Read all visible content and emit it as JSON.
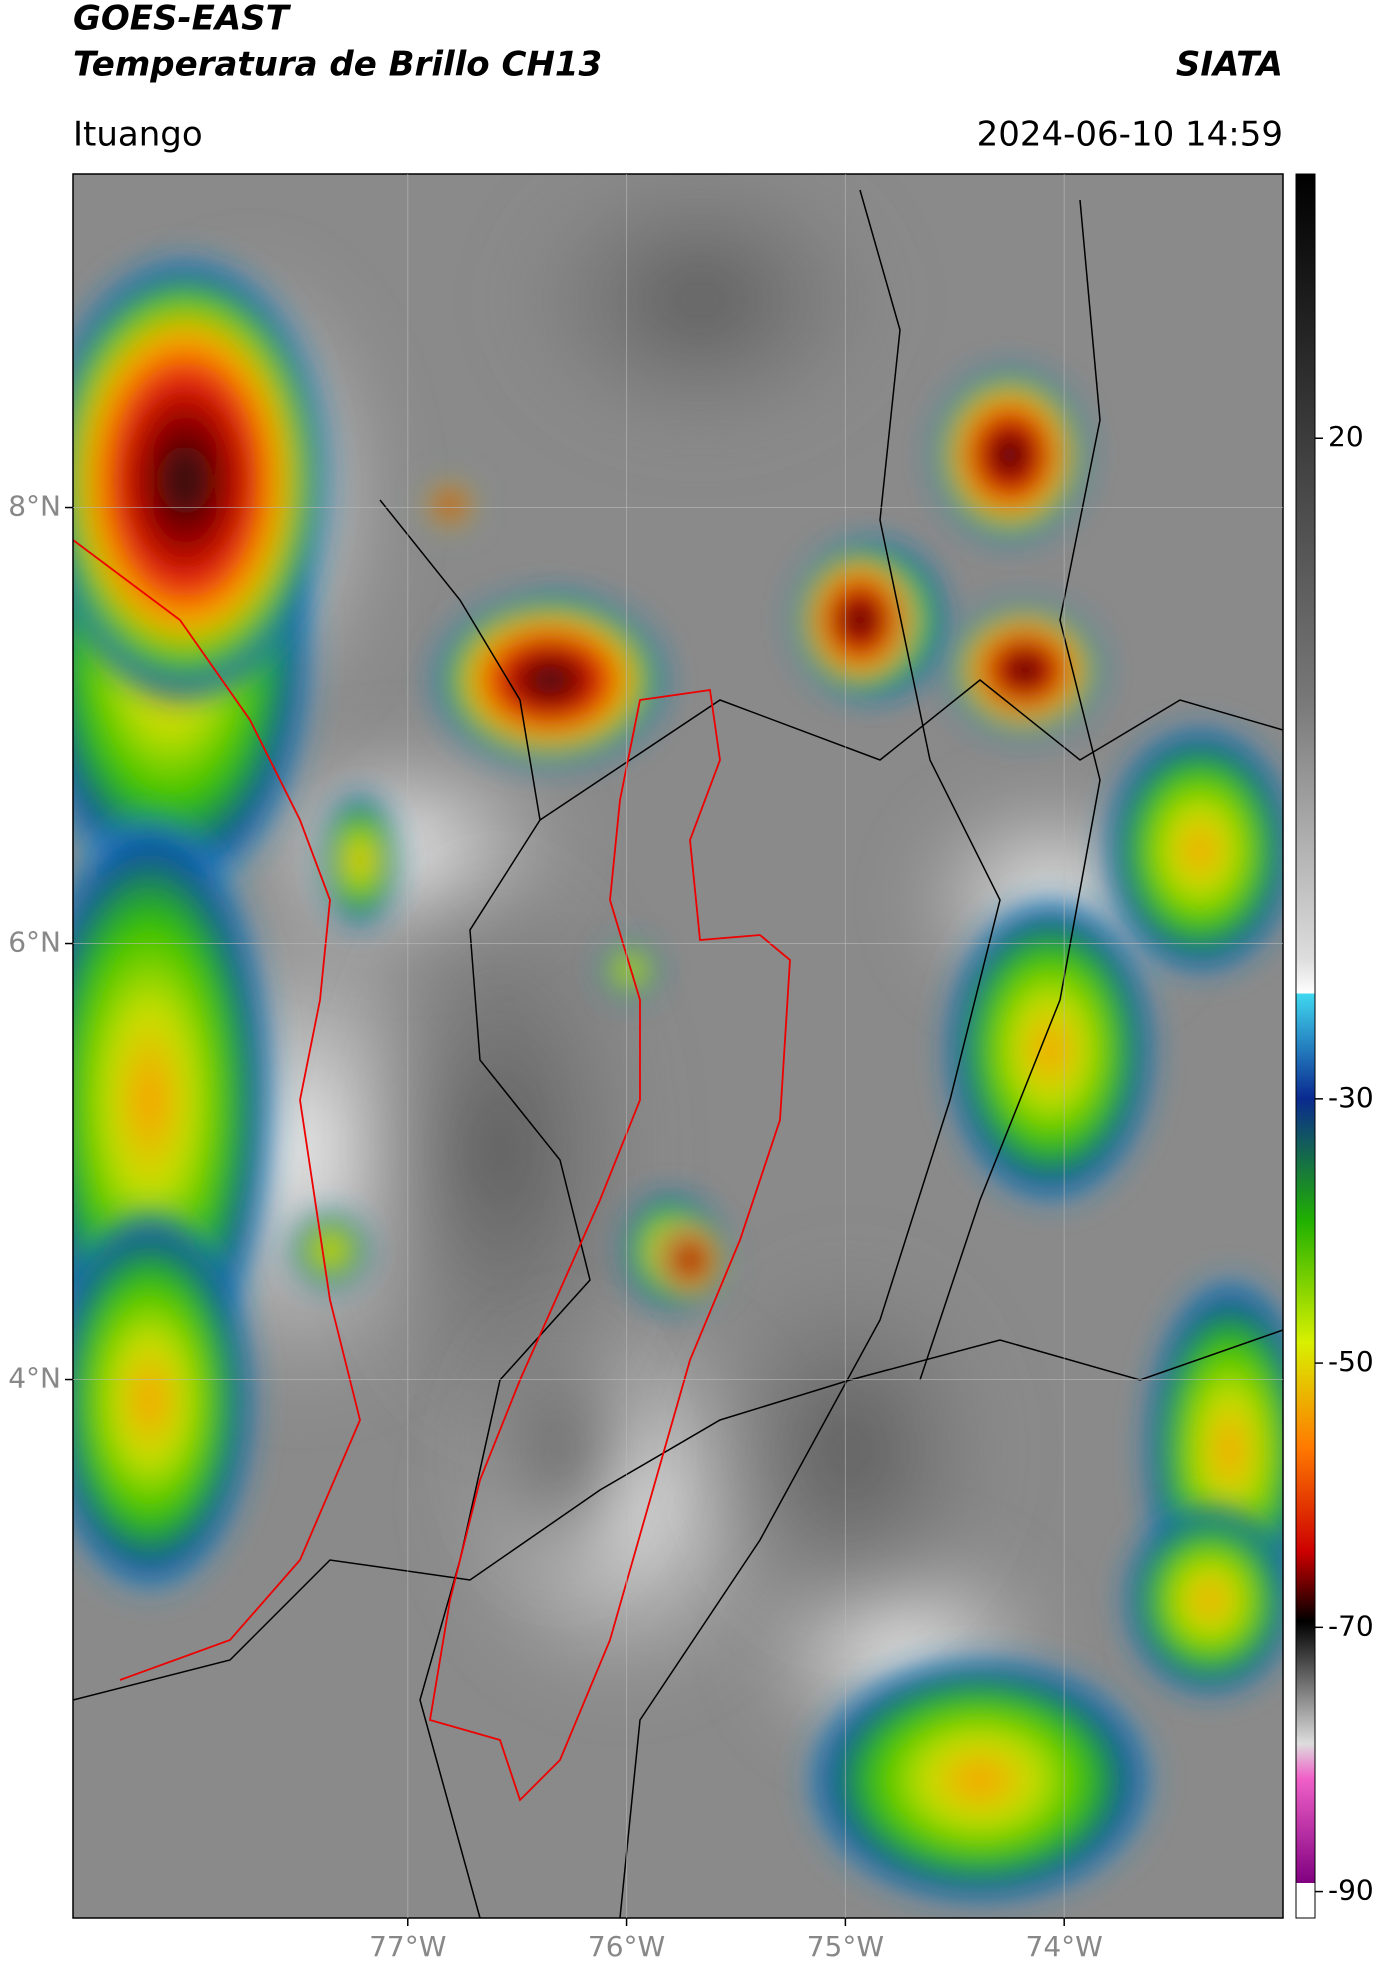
{
  "header": {
    "title_line1": "GOES-EAST",
    "title_line2": "Temperatura de Brillo CH13",
    "org": "SIATA",
    "location": "Ituango",
    "datetime": "2024-06-10 14:59"
  },
  "map": {
    "xlim": [
      -78.53,
      -73.0
    ],
    "ylim": [
      1.53,
      9.53
    ],
    "yticks": [
      {
        "value": 8,
        "label": "8°N"
      },
      {
        "value": 6,
        "label": "6°N"
      },
      {
        "value": 4,
        "label": "4°N"
      }
    ],
    "xticks": [
      {
        "value": -77,
        "label": "77°W"
      },
      {
        "value": -76,
        "label": "76°W"
      },
      {
        "value": -75,
        "label": "75°W"
      },
      {
        "value": -74,
        "label": "74°W"
      }
    ],
    "grid": true
  },
  "colorbar": {
    "lim": [
      40,
      -92
    ],
    "ticks": [
      20,
      -30,
      -50,
      -70,
      -90
    ]
  }
}
